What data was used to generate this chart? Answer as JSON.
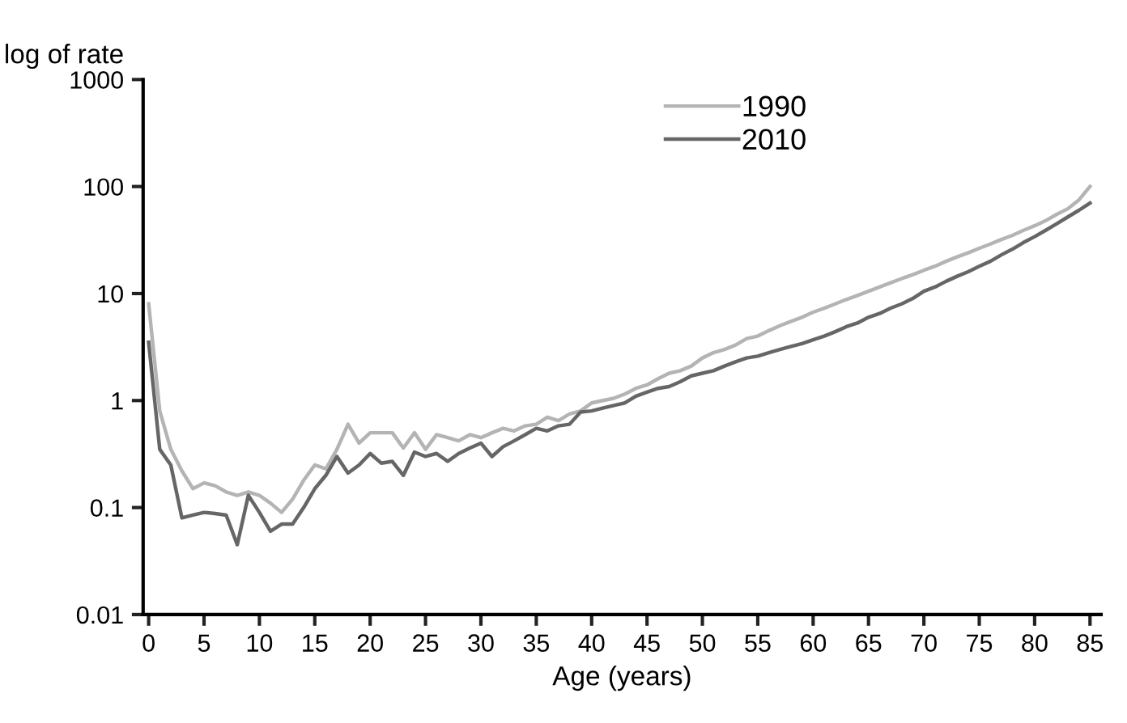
{
  "chart_data": {
    "type": "line",
    "xlabel": "Age (years)",
    "ylabel": "log of rate",
    "log": "y",
    "grid": false,
    "legend": "top right",
    "marker": "none",
    "line_style": "solid",
    "x": [
      0,
      1,
      2,
      3,
      4,
      5,
      6,
      7,
      8,
      9,
      10,
      11,
      12,
      13,
      14,
      15,
      16,
      17,
      18,
      19,
      20,
      21,
      22,
      23,
      24,
      25,
      26,
      27,
      28,
      29,
      30,
      31,
      32,
      33,
      34,
      35,
      36,
      37,
      38,
      39,
      40,
      41,
      42,
      43,
      44,
      45,
      46,
      47,
      48,
      49,
      50,
      51,
      52,
      53,
      54,
      55,
      56,
      57,
      58,
      59,
      60,
      61,
      62,
      63,
      64,
      65,
      66,
      67,
      68,
      69,
      70,
      71,
      72,
      73,
      74,
      75,
      76,
      77,
      78,
      79,
      80,
      81,
      82,
      83,
      84,
      85
    ],
    "xlim": [
      -0.5,
      86
    ],
    "xticks": [
      0,
      5,
      10,
      15,
      20,
      25,
      30,
      35,
      40,
      45,
      50,
      55,
      60,
      65,
      70,
      75,
      80,
      85
    ],
    "ylim": [
      0.01,
      1000
    ],
    "yticks": [
      0.01,
      0.1,
      1,
      10,
      100,
      1000
    ],
    "series": [
      {
        "name": "1990",
        "color": "#b4b4b4",
        "values": [
          8,
          0.8,
          0.35,
          0.22,
          0.15,
          0.17,
          0.16,
          0.14,
          0.13,
          0.14,
          0.13,
          0.11,
          0.09,
          0.12,
          0.18,
          0.25,
          0.23,
          0.35,
          0.6,
          0.4,
          0.5,
          0.5,
          0.5,
          0.36,
          0.5,
          0.35,
          0.48,
          0.45,
          0.42,
          0.48,
          0.45,
          0.5,
          0.55,
          0.52,
          0.58,
          0.6,
          0.7,
          0.65,
          0.75,
          0.8,
          0.95,
          1.0,
          1.05,
          1.15,
          1.3,
          1.4,
          1.6,
          1.8,
          1.9,
          2.1,
          2.5,
          2.8,
          3.0,
          3.3,
          3.8,
          4.0,
          4.5,
          5.0,
          5.5,
          6.0,
          6.7,
          7.3,
          8,
          8.8,
          9.6,
          10.5,
          11.5,
          12.6,
          13.8,
          15,
          16.5,
          18,
          20,
          22,
          24,
          26.5,
          29,
          32,
          35,
          39,
          43,
          48,
          55,
          62,
          75,
          100
        ]
      },
      {
        "name": "2010",
        "color": "#666666",
        "values": [
          3.5,
          0.35,
          0.25,
          0.08,
          0.085,
          0.09,
          0.088,
          0.085,
          0.045,
          0.13,
          0.09,
          0.06,
          0.07,
          0.07,
          0.1,
          0.15,
          0.2,
          0.3,
          0.21,
          0.25,
          0.32,
          0.26,
          0.27,
          0.2,
          0.33,
          0.3,
          0.32,
          0.27,
          0.32,
          0.36,
          0.4,
          0.3,
          0.37,
          0.42,
          0.48,
          0.55,
          0.52,
          0.58,
          0.6,
          0.78,
          0.8,
          0.85,
          0.9,
          0.95,
          1.1,
          1.2,
          1.3,
          1.35,
          1.5,
          1.7,
          1.8,
          1.9,
          2.1,
          2.3,
          2.5,
          2.6,
          2.8,
          3.0,
          3.2,
          3.4,
          3.7,
          4.0,
          4.4,
          4.9,
          5.3,
          6.0,
          6.5,
          7.3,
          8.0,
          9.0,
          10.5,
          11.5,
          13,
          14.5,
          16,
          18,
          20,
          23,
          26,
          30,
          34,
          39,
          45,
          52,
          60,
          70
        ]
      }
    ]
  }
}
